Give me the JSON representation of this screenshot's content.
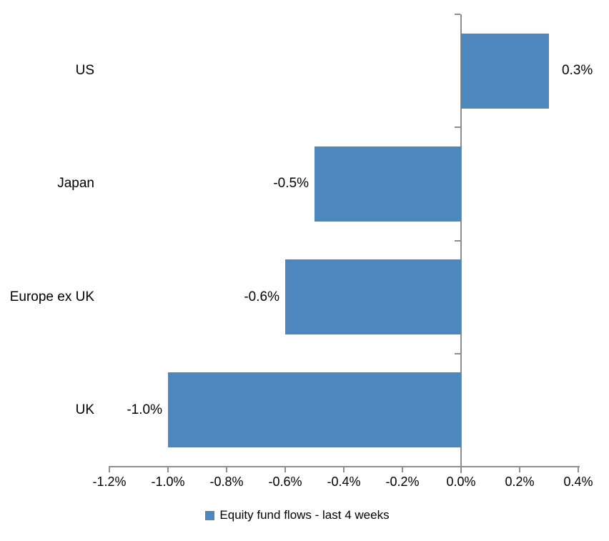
{
  "chart_data": {
    "type": "bar",
    "orientation": "horizontal",
    "title": "",
    "categories": [
      "US",
      "Japan",
      "Europe ex UK",
      "UK"
    ],
    "values": [
      0.3,
      -0.5,
      -0.6,
      -1.0
    ],
    "value_labels": [
      "0.3%",
      "-0.5%",
      "-0.6%",
      "-1.0%"
    ],
    "series_name": "Equity fund flows - last 4 weeks",
    "xlim": [
      -1.2,
      0.4
    ],
    "x_tick_values": [
      -1.2,
      -1.0,
      -0.8,
      -0.6,
      -0.4,
      -0.2,
      0.0,
      0.2,
      0.4
    ],
    "x_tick_labels": [
      "-1.2%",
      "-1.0%",
      "-0.8%",
      "-0.6%",
      "-0.4%",
      "-0.2%",
      "0.0%",
      "0.2%",
      "0.4%"
    ],
    "bar_color": "#4E87BD",
    "axis_color": "#8E8E8E",
    "text_color": "#000000",
    "grid": false,
    "legend_position": "bottom"
  }
}
